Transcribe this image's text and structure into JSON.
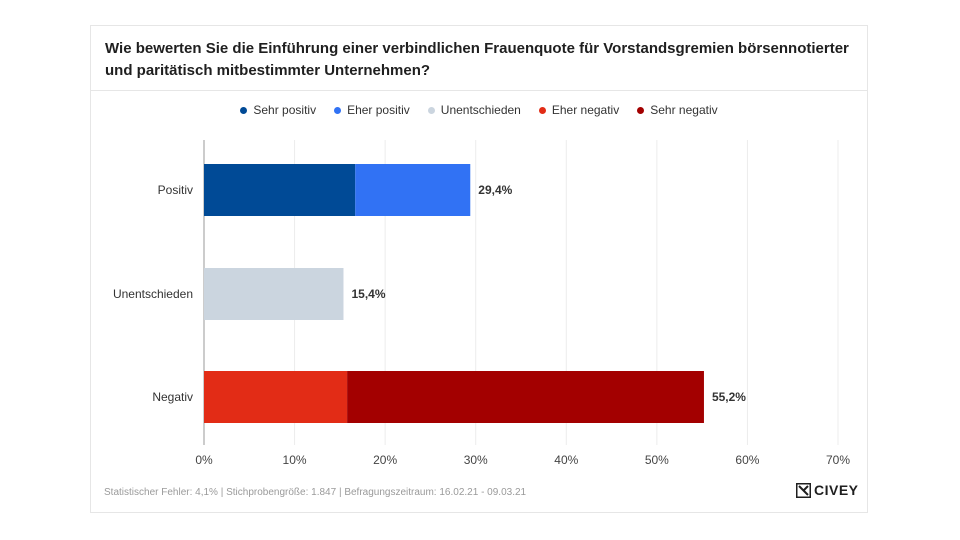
{
  "chart_data": {
    "type": "bar",
    "orientation": "horizontal",
    "stacked": true,
    "title": "Wie bewerten Sie die Einführung einer verbindlichen Frauenquote für Vorstandsgremien börsennotierter und paritätisch mitbestimmter Unternehmen?",
    "categories": [
      "Positiv",
      "Unentschieden",
      "Negativ"
    ],
    "series": [
      {
        "name": "Sehr positiv",
        "color": "#004a96",
        "values": [
          16.7,
          0,
          0
        ]
      },
      {
        "name": "Eher positiv",
        "color": "#3172f4",
        "values": [
          12.7,
          0,
          0
        ]
      },
      {
        "name": "Unentschieden",
        "color": "#cbd5df",
        "values": [
          0,
          15.4,
          0
        ]
      },
      {
        "name": "Eher negativ",
        "color": "#e22c16",
        "values": [
          0,
          0,
          15.8
        ]
      },
      {
        "name": "Sehr negativ",
        "color": "#a30000",
        "values": [
          0,
          0,
          39.4
        ]
      }
    ],
    "totals": [
      "29,4%",
      "15,4%",
      "55,2%"
    ],
    "xlim": [
      0,
      70
    ],
    "xticks": [
      "0%",
      "10%",
      "20%",
      "30%",
      "40%",
      "50%",
      "60%",
      "70%"
    ],
    "grid": true,
    "legend_position": "top-center"
  },
  "footer": {
    "text": "Statistischer Fehler: 4,1% | Stichprobengröße: 1.847 | Befragungszeitraum: 16.02.21 - 09.03.21"
  },
  "logo": {
    "text": "CIVEY"
  }
}
